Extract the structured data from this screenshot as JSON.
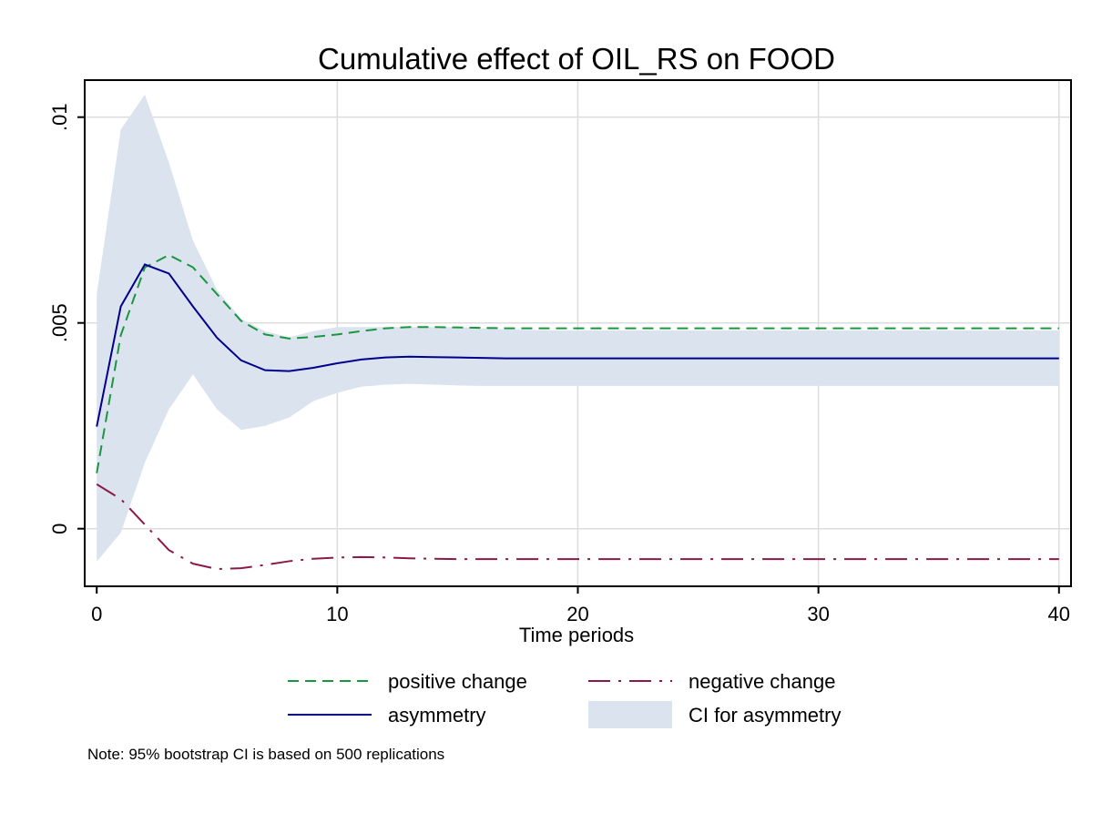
{
  "chart_data": {
    "type": "line",
    "title": "Cumulative effect of OIL_RS on FOOD",
    "xlabel": "Time periods",
    "ylabel": "",
    "xlim": [
      -0.5,
      40.5
    ],
    "ylim": [
      -0.0014,
      0.0109
    ],
    "x_ticks": [
      {
        "value": 0,
        "label": "0"
      },
      {
        "value": 10,
        "label": "10"
      },
      {
        "value": 20,
        "label": "20"
      },
      {
        "value": 30,
        "label": "30"
      },
      {
        "value": 40,
        "label": "40"
      }
    ],
    "y_ticks": [
      {
        "value": 0,
        "label": "0"
      },
      {
        "value": 0.005,
        "label": ".005"
      },
      {
        "value": 0.01,
        "label": ".01"
      }
    ],
    "grid": true,
    "x": [
      0,
      1,
      2,
      3,
      4,
      5,
      6,
      7,
      8,
      9,
      10,
      11,
      12,
      13,
      14,
      15,
      16,
      17,
      18,
      19,
      20,
      21,
      22,
      23,
      24,
      25,
      26,
      27,
      28,
      29,
      30,
      31,
      32,
      33,
      34,
      35,
      36,
      37,
      38,
      39,
      40
    ],
    "series": [
      {
        "name": "positive change",
        "style": "short-dash",
        "color": "#1a9641",
        "values": [
          0.00135,
          0.0047,
          0.00635,
          0.00665,
          0.00635,
          0.0057,
          0.00505,
          0.00472,
          0.00462,
          0.00466,
          0.00472,
          0.0048,
          0.00487,
          0.0049,
          0.0049,
          0.00489,
          0.00488,
          0.00487,
          0.00487,
          0.00487,
          0.00487,
          0.00487,
          0.00487,
          0.00487,
          0.00487,
          0.00487,
          0.00487,
          0.00487,
          0.00487,
          0.00487,
          0.00487,
          0.00487,
          0.00487,
          0.00487,
          0.00487,
          0.00487,
          0.00487,
          0.00487,
          0.00487,
          0.00487,
          0.00487
        ]
      },
      {
        "name": "negative change",
        "style": "long-dash",
        "color": "#8b1a4a",
        "values": [
          0.00108,
          0.00072,
          0.0001,
          -0.00052,
          -0.00085,
          -0.00098,
          -0.00096,
          -0.00088,
          -0.00079,
          -0.00073,
          -0.0007,
          -0.00069,
          -0.0007,
          -0.00072,
          -0.00073,
          -0.00074,
          -0.00074,
          -0.00074,
          -0.00074,
          -0.00074,
          -0.00074,
          -0.00074,
          -0.00074,
          -0.00074,
          -0.00074,
          -0.00074,
          -0.00074,
          -0.00074,
          -0.00074,
          -0.00074,
          -0.00074,
          -0.00074,
          -0.00074,
          -0.00074,
          -0.00074,
          -0.00074,
          -0.00074,
          -0.00074,
          -0.00074,
          -0.00074,
          -0.00074
        ]
      },
      {
        "name": "asymmetry",
        "style": "solid",
        "color": "#00008b",
        "values": [
          0.00248,
          0.0054,
          0.00642,
          0.0062,
          0.0054,
          0.00464,
          0.00409,
          0.00385,
          0.00383,
          0.00391,
          0.00402,
          0.00411,
          0.00416,
          0.00418,
          0.00417,
          0.00416,
          0.00415,
          0.00414,
          0.00414,
          0.00414,
          0.00414,
          0.00414,
          0.00414,
          0.00414,
          0.00414,
          0.00414,
          0.00414,
          0.00414,
          0.00414,
          0.00414,
          0.00414,
          0.00414,
          0.00414,
          0.00414,
          0.00414,
          0.00414,
          0.00414,
          0.00414,
          0.00414,
          0.00414,
          0.00414
        ]
      }
    ],
    "band": {
      "name": "CI for asymmetry",
      "color": "#dbe3ee",
      "upper": [
        0.0057,
        0.0097,
        0.01055,
        0.0089,
        0.007,
        0.0058,
        0.0051,
        0.0048,
        0.00465,
        0.0048,
        0.0049,
        0.0049,
        0.0049,
        0.0049,
        0.0049,
        0.0049,
        0.00487,
        0.00484,
        0.00483,
        0.00482,
        0.00482,
        0.00482,
        0.00482,
        0.00482,
        0.00482,
        0.00482,
        0.00482,
        0.00482,
        0.00482,
        0.00482,
        0.00482,
        0.00482,
        0.00482,
        0.00482,
        0.00482,
        0.00482,
        0.00482,
        0.00482,
        0.00482,
        0.00482,
        0.00482
      ],
      "lower": [
        -0.0008,
        -0.0001,
        0.0016,
        0.0029,
        0.00375,
        0.0029,
        0.0024,
        0.0025,
        0.0027,
        0.0031,
        0.0033,
        0.00345,
        0.0035,
        0.00352,
        0.0035,
        0.00348,
        0.00347,
        0.00347,
        0.00347,
        0.00347,
        0.00347,
        0.00347,
        0.00347,
        0.00347,
        0.00347,
        0.00347,
        0.00347,
        0.00347,
        0.00347,
        0.00347,
        0.00347,
        0.00347,
        0.00347,
        0.00347,
        0.00347,
        0.00347,
        0.00347,
        0.00347,
        0.00347,
        0.00347,
        0.00347
      ]
    },
    "legend": {
      "placement": "bottom",
      "columns": 2,
      "items": [
        {
          "label": "positive change",
          "style": "short-dash",
          "color": "#1a9641"
        },
        {
          "label": "negative change",
          "style": "long-dash",
          "color": "#8b1a4a"
        },
        {
          "label": "asymmetry",
          "style": "solid",
          "color": "#00008b"
        },
        {
          "label": "CI for asymmetry",
          "style": "area",
          "color": "#dbe3ee"
        }
      ]
    },
    "note": "Note: 95% bootstrap CI is based on 500 replications"
  }
}
